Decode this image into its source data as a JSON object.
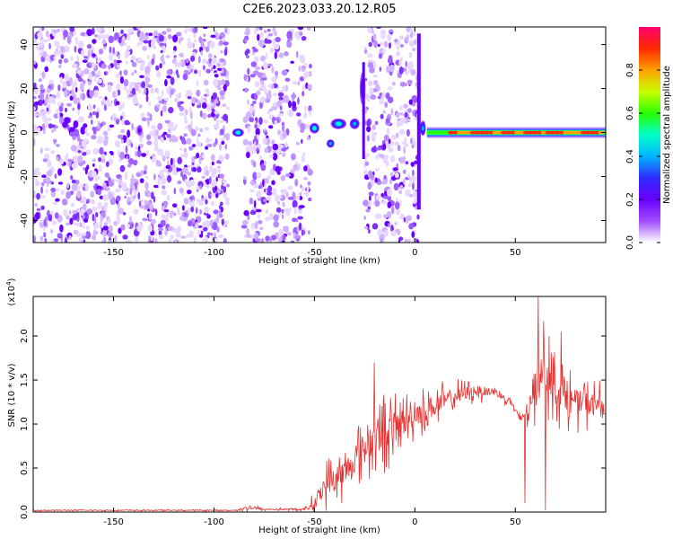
{
  "title": "C2E6.2023.033.20.12.R05",
  "chart_data": [
    {
      "type": "heatmap",
      "xlabel": "Height of straight line (km)",
      "ylabel": "Frequency (Hz)",
      "xlim": [
        -190,
        95
      ],
      "ylim": [
        -50,
        48
      ],
      "xticks": [
        -150,
        -100,
        -50,
        0,
        50
      ],
      "yticks": [
        -40,
        -20,
        0,
        20,
        40
      ],
      "bands": [
        {
          "x0": -190,
          "x1": -93,
          "kind": "noise",
          "density": 1.0
        },
        {
          "x0": -85,
          "x1": -52,
          "kind": "noise",
          "density": 0.85
        },
        {
          "x0": -25,
          "x1": 2,
          "kind": "noise",
          "density": 0.85
        }
      ],
      "features": [
        {
          "x": -137,
          "y": 1,
          "w": 2,
          "h": 4,
          "amp": 0.2
        },
        {
          "x": -88,
          "y": 0,
          "w": 5,
          "h": 3,
          "amp": 0.5
        },
        {
          "x": -50,
          "y": 2,
          "w": 4,
          "h": 4,
          "amp": 0.45
        },
        {
          "x": -42,
          "y": -5,
          "w": 3,
          "h": 3,
          "amp": 0.4
        },
        {
          "x": -38,
          "y": 4,
          "w": 7,
          "h": 4,
          "amp": 0.5
        },
        {
          "x": -30,
          "y": 4,
          "w": 4,
          "h": 4,
          "amp": 0.4
        },
        {
          "x": -26,
          "y": 20,
          "w": 2,
          "h": 14,
          "amp": 0.3
        },
        {
          "x": 4,
          "y": 2,
          "w": 2,
          "h": 6,
          "amp": 0.4
        }
      ],
      "line_trace": {
        "y": 0,
        "x0": 6,
        "x1": 95,
        "amp": 0.9
      },
      "colorbar": {
        "label": "Normalized spectral amplitude",
        "ticks": [
          0.0,
          0.2,
          0.4,
          0.6,
          0.8
        ],
        "colors": [
          "#ffffff",
          "#a04dff",
          "#6a00ff",
          "#2f2cff",
          "#00b4ff",
          "#00ffc8",
          "#2bff00",
          "#c8ff00",
          "#ffa000",
          "#ff2a00",
          "#ff0070"
        ]
      }
    },
    {
      "type": "line",
      "xlabel": "Height of straight line (km)",
      "ylabel": "SNR (10 * v/v)",
      "exponent_label": "(x10",
      "exponent_power": "4",
      "exponent_close": ")",
      "xlim": [
        -190,
        95
      ],
      "ylim": [
        0,
        2.45
      ],
      "xticks": [
        -150,
        -100,
        -50,
        0,
        50
      ],
      "yticks": [
        0.0,
        0.5,
        1.0,
        1.5,
        2.0
      ],
      "color": "#e53030",
      "envelope": [
        {
          "x": -190,
          "base": 0.02,
          "amp": 0.01
        },
        {
          "x": -90,
          "base": 0.02,
          "amp": 0.01
        },
        {
          "x": -82,
          "base": 0.05,
          "amp": 0.05
        },
        {
          "x": -76,
          "base": 0.03,
          "amp": 0.02
        },
        {
          "x": -55,
          "base": 0.03,
          "amp": 0.02
        },
        {
          "x": -50,
          "base": 0.1,
          "amp": 0.15
        },
        {
          "x": -45,
          "base": 0.3,
          "amp": 0.3
        },
        {
          "x": -35,
          "base": 0.45,
          "amp": 0.35
        },
        {
          "x": -25,
          "base": 0.75,
          "amp": 0.4
        },
        {
          "x": -20,
          "base": 0.85,
          "amp": 0.55
        },
        {
          "x": -10,
          "base": 0.95,
          "amp": 0.4
        },
        {
          "x": 0,
          "base": 1.1,
          "amp": 0.3
        },
        {
          "x": 10,
          "base": 1.2,
          "amp": 0.3
        },
        {
          "x": 20,
          "base": 1.32,
          "amp": 0.2
        },
        {
          "x": 30,
          "base": 1.38,
          "amp": 0.15
        },
        {
          "x": 40,
          "base": 1.36,
          "amp": 0.1
        },
        {
          "x": 48,
          "base": 1.25,
          "amp": 0.08
        },
        {
          "x": 52,
          "base": 1.05,
          "amp": 0.1
        },
        {
          "x": 58,
          "base": 1.2,
          "amp": 0.35
        },
        {
          "x": 62,
          "base": 1.7,
          "amp": 0.6
        },
        {
          "x": 70,
          "base": 1.4,
          "amp": 0.45
        },
        {
          "x": 80,
          "base": 1.25,
          "amp": 0.35
        },
        {
          "x": 95,
          "base": 1.2,
          "amp": 0.3
        }
      ],
      "spikes": [
        {
          "x": 61.5,
          "y": 2.45
        },
        {
          "x": 67,
          "y": 2.0
        },
        {
          "x": 73,
          "y": 2.05
        },
        {
          "x": -20,
          "y": 1.7
        },
        {
          "x": -12,
          "y": 1.3
        },
        {
          "x": 55,
          "y": 0.1
        },
        {
          "x": 65,
          "y": 0.02
        }
      ]
    }
  ]
}
